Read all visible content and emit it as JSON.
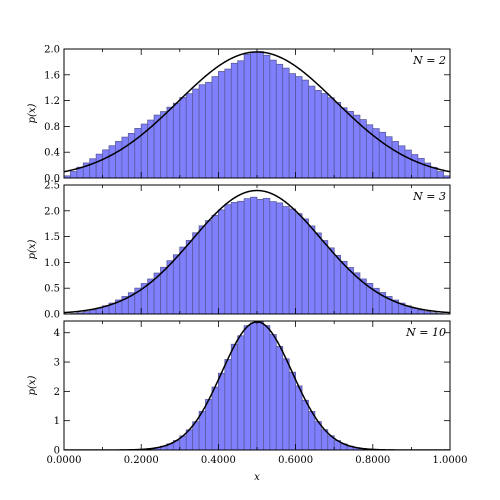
{
  "chart_data": [
    {
      "type": "histogram",
      "annotation": "N = 2",
      "ylabel": "p(x)",
      "xlabel": "",
      "xlim": [
        0,
        1
      ],
      "ylim": [
        0,
        2.0
      ],
      "yticks": [
        0.0,
        0.4,
        0.8,
        1.2,
        1.6,
        2.0
      ],
      "ytick_labels": [
        "0.0",
        "0.4",
        "0.8",
        "1.2",
        "1.6",
        "2.0"
      ],
      "bins": 60,
      "hist_model": "triangular",
      "gaussian": {
        "mean": 0.5,
        "sigma": 0.2041
      },
      "show_xtick_labels": false
    },
    {
      "type": "histogram",
      "annotation": "N = 3",
      "ylabel": "p(x)",
      "xlabel": "",
      "xlim": [
        0,
        1
      ],
      "ylim": [
        0,
        2.5
      ],
      "yticks": [
        0.0,
        0.5,
        1.0,
        1.5,
        2.0,
        2.5
      ],
      "ytick_labels": [
        "0.0",
        "0.5",
        "1.0",
        "1.5",
        "2.0",
        "2.5"
      ],
      "bins": 60,
      "hist_model": "quadratic-spline",
      "gaussian": {
        "mean": 0.5,
        "sigma": 0.1667
      },
      "show_xtick_labels": false
    },
    {
      "type": "histogram",
      "annotation": "N = 10",
      "ylabel": "p(x)",
      "xlabel": "x",
      "xlim": [
        0,
        1
      ],
      "ylim": [
        0,
        4.4
      ],
      "yticks": [
        0,
        1,
        2,
        3,
        4
      ],
      "ytick_labels": [
        "0",
        "1",
        "2",
        "3",
        "4"
      ],
      "bins": 60,
      "hist_model": "gaussian",
      "gaussian": {
        "mean": 0.5,
        "sigma": 0.0913
      },
      "show_xtick_labels": true
    }
  ],
  "x_axis": {
    "ticks": [
      0.0,
      0.2,
      0.4,
      0.6,
      0.8,
      1.0
    ],
    "tick_labels": [
      "0.0000",
      "0.2000",
      "0.4000",
      "0.6000",
      "0.8000",
      "1.0000"
    ],
    "minor_ticks": [
      0.1,
      0.3,
      0.5,
      0.7,
      0.9
    ]
  },
  "colors": {
    "hist_fill": "#8080ff",
    "hist_edge": "#5a5a9c",
    "curve": "#000000"
  }
}
